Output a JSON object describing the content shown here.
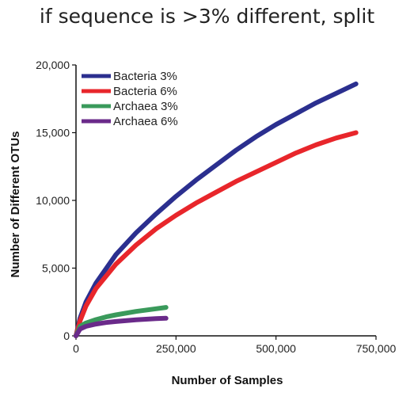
{
  "header": {
    "text": "if sequence is >3% different, split"
  },
  "chart_data": {
    "type": "line",
    "title": "",
    "xlabel": "Number of Samples",
    "ylabel": "Number of Different OTUs",
    "xlim": [
      0,
      750000
    ],
    "ylim": [
      0,
      20000
    ],
    "xticks": [
      0,
      250000,
      500000,
      750000
    ],
    "xtick_labels": [
      "0",
      "250,000",
      "500,000",
      "750,000"
    ],
    "yticks": [
      0,
      5000,
      10000,
      15000,
      20000
    ],
    "ytick_labels": [
      "0",
      "5,000",
      "10,000",
      "15,000",
      "20,000"
    ],
    "grid": false,
    "legend_position": "top-left",
    "series": [
      {
        "name": "Bacteria 3%",
        "color": "#2b2f8f",
        "x": [
          0,
          10000,
          25000,
          50000,
          100000,
          150000,
          200000,
          250000,
          300000,
          350000,
          400000,
          450000,
          500000,
          550000,
          600000,
          650000,
          700000
        ],
        "y": [
          0,
          1300,
          2500,
          3900,
          6000,
          7600,
          9000,
          10300,
          11500,
          12600,
          13700,
          14700,
          15600,
          16400,
          17200,
          17900,
          18600
        ]
      },
      {
        "name": "Bacteria 6%",
        "color": "#e8262b",
        "x": [
          0,
          10000,
          25000,
          50000,
          100000,
          150000,
          200000,
          250000,
          300000,
          350000,
          400000,
          450000,
          500000,
          550000,
          600000,
          650000,
          700000
        ],
        "y": [
          0,
          1100,
          2200,
          3500,
          5300,
          6700,
          7900,
          8900,
          9800,
          10600,
          11400,
          12100,
          12800,
          13500,
          14100,
          14600,
          15000
        ]
      },
      {
        "name": "Archaea 3%",
        "color": "#3a9a5b",
        "x": [
          0,
          10000,
          25000,
          50000,
          75000,
          100000,
          150000,
          200000,
          225000
        ],
        "y": [
          0,
          700,
          950,
          1200,
          1400,
          1550,
          1800,
          2000,
          2100
        ]
      },
      {
        "name": "Archaea 6%",
        "color": "#6a2a8a",
        "x": [
          0,
          10000,
          25000,
          50000,
          75000,
          100000,
          150000,
          200000,
          225000
        ],
        "y": [
          0,
          500,
          700,
          870,
          980,
          1060,
          1180,
          1270,
          1300
        ]
      }
    ]
  }
}
